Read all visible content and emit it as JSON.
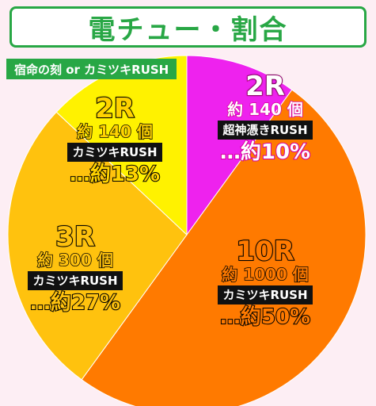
{
  "title": "電チュー・割合",
  "subtitle": "宿命の刻 or カミツキRUSH",
  "colors": {
    "background": "#fdeef4",
    "title_green": "#28a745",
    "pie_outline": "#ffffff"
  },
  "chart_data": {
    "type": "pie",
    "title": "電チュー・割合",
    "subtitle": "宿命の刻 or カミツキRUSH",
    "start": "top",
    "direction": "clockwise",
    "slices": [
      {
        "rounds": "2R",
        "count": "約 140 個",
        "mode": "超神憑きRUSH",
        "percent_label": "…約10%",
        "value": 10,
        "color": "#ee22ee"
      },
      {
        "rounds": "10R",
        "count": "約 1000 個",
        "mode": "カミツキRUSH",
        "percent_label": "…約50%",
        "value": 50,
        "color": "#ff7a00"
      },
      {
        "rounds": "3R",
        "count": "約 300 個",
        "mode": "カミツキRUSH",
        "percent_label": "…約27%",
        "value": 27,
        "color": "#ffc20e"
      },
      {
        "rounds": "2R",
        "count": "約 140 個",
        "mode": "カミツキRUSH",
        "percent_label": "…約13%",
        "value": 13,
        "color": "#fff200"
      }
    ]
  }
}
